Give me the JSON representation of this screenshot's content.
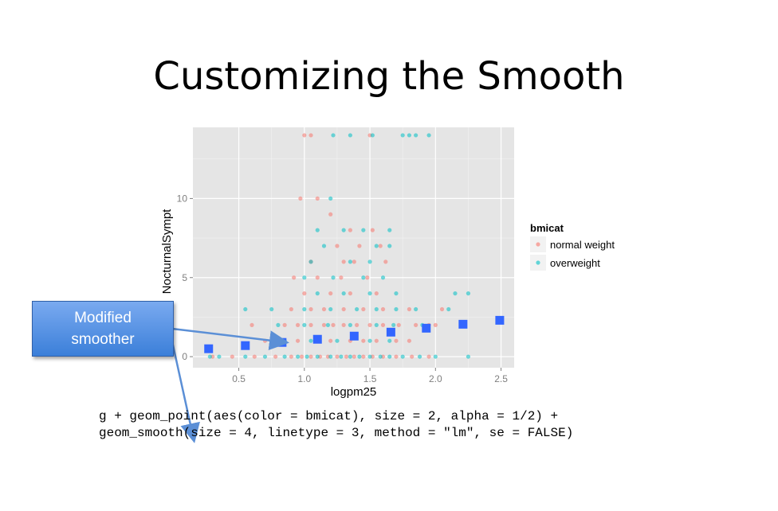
{
  "slide": {
    "title": "Customizing the Smooth",
    "code_line1": "g + geom_point(aes(color = bmicat), size = 2, alpha = 1/2) +",
    "code_line2": "geom_smooth(size = 4, linetype = 3, method = \"lm\", se = FALSE)",
    "callout_line1": "Modified",
    "callout_line2": "smoother"
  },
  "colors": {
    "normal_weight": "#f8766d",
    "overweight": "#00bfc4",
    "smoother": "#3366ff",
    "panel": "#e5e5e5"
  },
  "chart_data": {
    "type": "scatter",
    "xlabel": "logpm25",
    "ylabel": "NocturnalSympt",
    "xlim": [
      0.15,
      2.6
    ],
    "ylim": [
      -0.7,
      14.5
    ],
    "xticks": [
      0.5,
      1.0,
      1.5,
      2.0,
      2.5
    ],
    "xtick_labels": [
      "0.5",
      "1.0",
      "1.5",
      "2.0",
      "2.5"
    ],
    "yticks": [
      0,
      5,
      10
    ],
    "ytick_labels": [
      "0",
      "5",
      "10"
    ],
    "grid": true,
    "legend": {
      "title": "bmicat",
      "position": "right",
      "entries": [
        "normal weight",
        "overweight"
      ]
    },
    "series": [
      {
        "name": "normal weight",
        "points": [
          [
            0.3,
            0
          ],
          [
            0.45,
            0
          ],
          [
            0.62,
            0
          ],
          [
            0.78,
            0
          ],
          [
            0.9,
            0
          ],
          [
            0.98,
            0
          ],
          [
            1.05,
            0
          ],
          [
            1.12,
            0
          ],
          [
            1.18,
            0
          ],
          [
            1.25,
            0
          ],
          [
            1.32,
            0
          ],
          [
            1.38,
            0
          ],
          [
            1.45,
            0
          ],
          [
            1.52,
            0
          ],
          [
            1.6,
            0
          ],
          [
            1.7,
            0
          ],
          [
            1.82,
            0
          ],
          [
            1.95,
            0
          ],
          [
            0.6,
            2
          ],
          [
            0.85,
            2
          ],
          [
            0.95,
            2
          ],
          [
            1.05,
            2
          ],
          [
            1.15,
            2
          ],
          [
            1.22,
            2
          ],
          [
            1.3,
            2
          ],
          [
            1.4,
            2
          ],
          [
            1.5,
            2
          ],
          [
            1.6,
            2
          ],
          [
            1.72,
            2
          ],
          [
            1.85,
            2
          ],
          [
            1.95,
            2
          ],
          [
            2.0,
            2
          ],
          [
            0.7,
            1
          ],
          [
            0.95,
            1
          ],
          [
            1.1,
            1
          ],
          [
            1.2,
            1
          ],
          [
            1.35,
            1
          ],
          [
            1.45,
            1
          ],
          [
            1.55,
            1
          ],
          [
            1.7,
            1
          ],
          [
            1.8,
            1
          ],
          [
            0.9,
            3
          ],
          [
            1.05,
            3
          ],
          [
            1.15,
            3
          ],
          [
            1.3,
            3
          ],
          [
            1.45,
            3
          ],
          [
            1.6,
            3
          ],
          [
            1.8,
            3
          ],
          [
            2.05,
            3
          ],
          [
            1.0,
            4
          ],
          [
            1.2,
            4
          ],
          [
            1.35,
            4
          ],
          [
            1.55,
            4
          ],
          [
            0.92,
            5
          ],
          [
            1.1,
            5
          ],
          [
            1.28,
            5
          ],
          [
            1.48,
            5
          ],
          [
            1.05,
            6
          ],
          [
            1.3,
            6
          ],
          [
            1.38,
            6
          ],
          [
            1.62,
            6
          ],
          [
            1.25,
            7
          ],
          [
            1.42,
            7
          ],
          [
            1.58,
            7
          ],
          [
            1.35,
            8
          ],
          [
            1.52,
            8
          ],
          [
            1.2,
            9
          ],
          [
            0.97,
            10
          ],
          [
            1.1,
            10
          ],
          [
            1.0,
            14
          ],
          [
            1.05,
            14
          ],
          [
            1.5,
            14
          ]
        ]
      },
      {
        "name": "overweight",
        "points": [
          [
            0.28,
            0
          ],
          [
            0.35,
            0
          ],
          [
            0.55,
            0
          ],
          [
            0.7,
            0
          ],
          [
            0.85,
            0
          ],
          [
            0.95,
            0
          ],
          [
            1.02,
            0
          ],
          [
            1.1,
            0
          ],
          [
            1.2,
            0
          ],
          [
            1.28,
            0
          ],
          [
            1.35,
            0
          ],
          [
            1.42,
            0
          ],
          [
            1.5,
            0
          ],
          [
            1.58,
            0
          ],
          [
            1.65,
            0
          ],
          [
            1.75,
            0
          ],
          [
            1.88,
            0
          ],
          [
            2.0,
            0
          ],
          [
            2.25,
            0
          ],
          [
            0.55,
            3
          ],
          [
            0.75,
            3
          ],
          [
            1.0,
            3
          ],
          [
            1.2,
            3
          ],
          [
            1.4,
            3
          ],
          [
            1.55,
            3
          ],
          [
            1.7,
            3
          ],
          [
            1.85,
            3
          ],
          [
            2.1,
            3
          ],
          [
            2.15,
            4
          ],
          [
            2.25,
            4
          ],
          [
            0.8,
            2
          ],
          [
            1.0,
            2
          ],
          [
            1.18,
            2
          ],
          [
            1.35,
            2
          ],
          [
            1.55,
            2
          ],
          [
            1.68,
            2
          ],
          [
            1.9,
            2
          ],
          [
            0.85,
            1
          ],
          [
            1.05,
            1
          ],
          [
            1.25,
            1
          ],
          [
            1.5,
            1
          ],
          [
            1.65,
            1
          ],
          [
            1.1,
            4
          ],
          [
            1.3,
            4
          ],
          [
            1.5,
            4
          ],
          [
            1.7,
            4
          ],
          [
            1.0,
            5
          ],
          [
            1.22,
            5
          ],
          [
            1.45,
            5
          ],
          [
            1.6,
            5
          ],
          [
            1.05,
            6
          ],
          [
            1.35,
            6
          ],
          [
            1.5,
            6
          ],
          [
            1.15,
            7
          ],
          [
            1.55,
            7
          ],
          [
            1.65,
            7
          ],
          [
            1.1,
            8
          ],
          [
            1.3,
            8
          ],
          [
            1.45,
            8
          ],
          [
            1.65,
            8
          ],
          [
            1.2,
            10
          ],
          [
            1.22,
            14
          ],
          [
            1.35,
            14
          ],
          [
            1.52,
            14
          ],
          [
            1.75,
            14
          ],
          [
            1.8,
            14
          ],
          [
            1.85,
            14
          ],
          [
            1.95,
            14
          ]
        ]
      }
    ],
    "smoother": {
      "method": "lm",
      "linetype": "dotted",
      "points": [
        [
          0.27,
          0.5
        ],
        [
          0.55,
          0.7
        ],
        [
          0.83,
          0.9
        ],
        [
          1.1,
          1.1
        ],
        [
          1.38,
          1.3
        ],
        [
          1.66,
          1.55
        ],
        [
          1.93,
          1.8
        ],
        [
          2.21,
          2.05
        ],
        [
          2.49,
          2.3
        ]
      ]
    }
  }
}
